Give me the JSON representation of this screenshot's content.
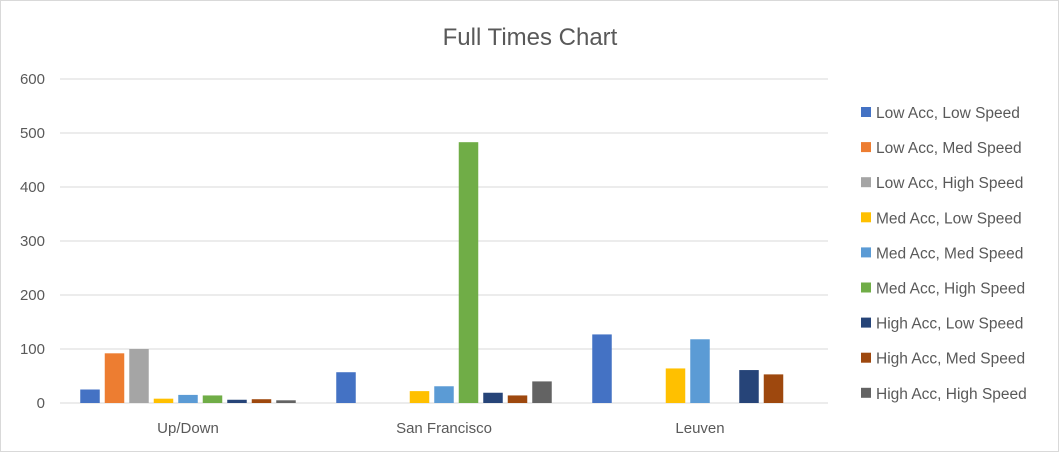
{
  "chart_data": {
    "type": "bar",
    "title": "Full Times Chart",
    "xlabel": "",
    "ylabel": "",
    "ylim": [
      0,
      600
    ],
    "yticks": [
      0,
      100,
      200,
      300,
      400,
      500,
      600
    ],
    "grid": true,
    "legend_position": "right",
    "categories": [
      "Up/Down",
      "San Francisco",
      "Leuven"
    ],
    "series": [
      {
        "name": "Low Acc, Low Speed",
        "color": "#4472c4",
        "values": [
          25,
          57,
          127
        ]
      },
      {
        "name": "Low Acc, Med Speed",
        "color": "#ed7d31",
        "values": [
          92,
          0,
          0
        ]
      },
      {
        "name": "Low Acc, High Speed",
        "color": "#a5a5a5",
        "values": [
          100,
          0,
          0
        ]
      },
      {
        "name": "Med Acc, Low Speed",
        "color": "#ffc000",
        "values": [
          8,
          22,
          64
        ]
      },
      {
        "name": "Med Acc, Med Speed",
        "color": "#5b9bd5",
        "values": [
          15,
          31,
          118
        ]
      },
      {
        "name": "Med Acc, High Speed",
        "color": "#70ad47",
        "values": [
          14,
          483,
          0
        ]
      },
      {
        "name": "High Acc, Low Speed",
        "color": "#264478",
        "values": [
          6,
          19,
          61
        ]
      },
      {
        "name": "High Acc, Med Speed",
        "color": "#9e480e",
        "values": [
          7,
          14,
          53
        ]
      },
      {
        "name": "High Acc, High Speed",
        "color": "#636363",
        "values": [
          5,
          40,
          0
        ]
      }
    ]
  }
}
